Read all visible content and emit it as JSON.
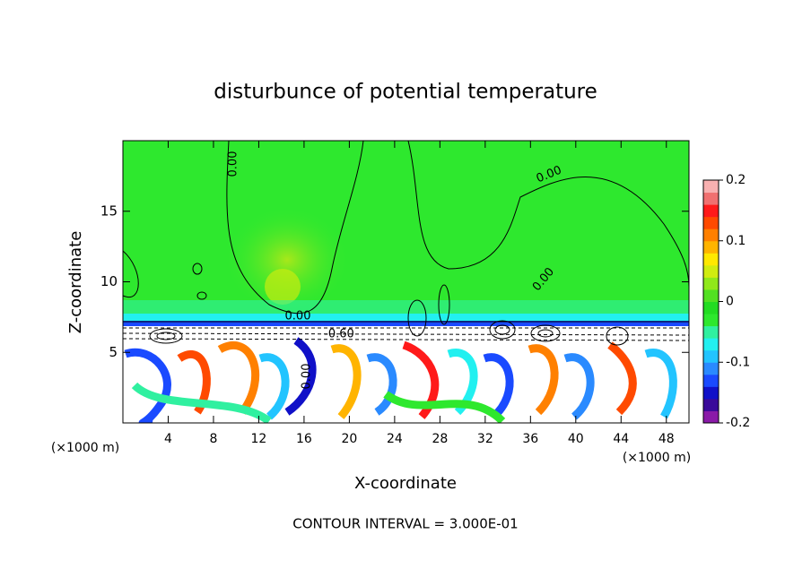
{
  "chart_data": {
    "type": "contour",
    "title": "disturbunce of potential temperature",
    "xlabel": "X-coordinate",
    "ylabel": "Z-coordinate",
    "x_unit": "(×1000 m)",
    "xlim": [
      0,
      50
    ],
    "xticks": [
      4,
      8,
      12,
      16,
      20,
      24,
      28,
      32,
      36,
      40,
      44,
      48
    ],
    "ylim": [
      0,
      20
    ],
    "yticks": [
      5,
      10,
      15
    ],
    "colorbar": {
      "clim": [
        -0.2,
        0.2
      ],
      "ticks": [
        -0.2,
        -0.1,
        0,
        0.1,
        0.2
      ],
      "colors": [
        "#8a1aa8",
        "#3a0a9a",
        "#1010c8",
        "#1a4aff",
        "#2a8aff",
        "#22c4ff",
        "#22f0f0",
        "#30f0a0",
        "#2ee82e",
        "#22dc22",
        "#52e022",
        "#90e81a",
        "#d0ec10",
        "#ffe800",
        "#ffb400",
        "#ff8000",
        "#ff4a00",
        "#ff1a1a",
        "#f07070",
        "#f8b0b0"
      ]
    },
    "contour_labels": [
      {
        "value": 0,
        "label": "0.00"
      },
      {
        "value": 0,
        "label": "0.00"
      },
      {
        "value": 0,
        "label": "0.00"
      },
      {
        "value": 0,
        "label": "0.00"
      },
      {
        "value": -0.6,
        "label": "-0.60"
      },
      {
        "value": 0,
        "label": "0.00"
      }
    ],
    "annotation": "CONTOUR INTERVAL = 3.000E-01"
  }
}
